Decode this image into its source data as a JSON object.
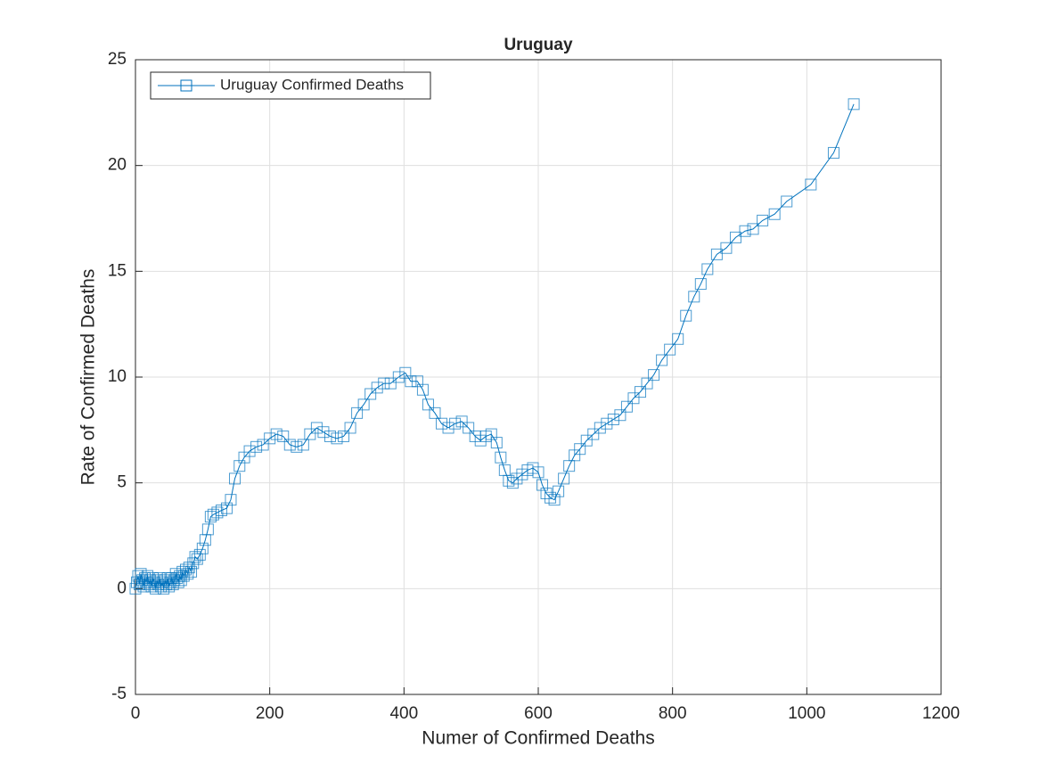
{
  "chart_data": {
    "type": "line",
    "title": "Uruguay",
    "x_label": "Numer of Confirmed Deaths",
    "y_label": "Rate of Confirmed Deaths",
    "xlim": [
      0,
      1200
    ],
    "ylim": [
      -5,
      25
    ],
    "xticks": [
      0,
      200,
      400,
      600,
      800,
      1000,
      1200
    ],
    "yticks": [
      -5,
      0,
      5,
      10,
      15,
      20,
      25
    ],
    "grid": true,
    "legend_position": "upper-left",
    "series": [
      {
        "name": "Uruguay Confirmed Deaths",
        "color": "#0072bd",
        "marker": "square",
        "x": [
          0,
          2,
          4,
          6,
          8,
          10,
          12,
          14,
          16,
          18,
          20,
          22,
          24,
          26,
          28,
          30,
          32,
          34,
          36,
          38,
          40,
          42,
          44,
          46,
          48,
          50,
          52,
          54,
          56,
          58,
          60,
          62,
          64,
          66,
          68,
          70,
          72,
          75,
          78,
          80,
          83,
          86,
          89,
          92,
          96,
          100,
          104,
          108,
          112,
          116,
          122,
          128,
          136,
          142,
          148,
          155,
          162,
          170,
          180,
          190,
          200,
          210,
          220,
          230,
          240,
          250,
          260,
          270,
          280,
          290,
          300,
          310,
          320,
          330,
          340,
          350,
          360,
          370,
          380,
          392,
          402,
          410,
          420,
          428,
          436,
          446,
          456,
          466,
          476,
          486,
          496,
          506,
          514,
          522,
          530,
          538,
          544,
          550,
          556,
          562,
          568,
          576,
          584,
          592,
          600,
          606,
          612,
          618,
          624,
          630,
          638,
          646,
          654,
          662,
          672,
          682,
          692,
          702,
          712,
          722,
          732,
          742,
          752,
          762,
          772,
          784,
          796,
          808,
          820,
          832,
          842,
          852,
          866,
          880,
          894,
          908,
          920,
          934,
          952,
          970,
          1006,
          1040,
          1070
        ],
        "values": [
          0,
          0.3,
          0.6,
          0.2,
          0.7,
          0.4,
          0.1,
          0.5,
          0.3,
          0.6,
          0.2,
          0.4,
          0.1,
          0.5,
          0.3,
          0,
          0.4,
          0.2,
          0.5,
          0.1,
          0.3,
          0,
          0.4,
          0.2,
          0.5,
          0.1,
          0.3,
          0.5,
          0.2,
          0.4,
          0.7,
          0.5,
          0.3,
          0.6,
          0.4,
          0.8,
          0.6,
          0.9,
          0.7,
          1.0,
          0.8,
          1.2,
          1.5,
          1.4,
          1.6,
          1.9,
          2.3,
          2.8,
          3.4,
          3.5,
          3.6,
          3.7,
          3.8,
          4.2,
          5.2,
          5.8,
          6.2,
          6.5,
          6.7,
          6.8,
          7.1,
          7.3,
          7.2,
          6.8,
          6.7,
          6.8,
          7.3,
          7.6,
          7.4,
          7.2,
          7.1,
          7.2,
          7.6,
          8.3,
          8.7,
          9.2,
          9.5,
          9.7,
          9.7,
          10.0,
          10.2,
          9.8,
          9.8,
          9.4,
          8.7,
          8.3,
          7.8,
          7.6,
          7.8,
          7.9,
          7.6,
          7.2,
          7.0,
          7.2,
          7.3,
          6.9,
          6.2,
          5.6,
          5.1,
          5.0,
          5.2,
          5.4,
          5.6,
          5.7,
          5.5,
          4.9,
          4.5,
          4.3,
          4.2,
          4.6,
          5.2,
          5.8,
          6.3,
          6.6,
          7.0,
          7.3,
          7.6,
          7.8,
          8.0,
          8.2,
          8.6,
          9.0,
          9.3,
          9.7,
          10.1,
          10.8,
          11.3,
          11.8,
          12.9,
          13.8,
          14.4,
          15.1,
          15.8,
          16.1,
          16.6,
          16.9,
          17.0,
          17.4,
          17.7,
          18.3,
          19.1,
          20.6,
          22.9
        ]
      }
    ]
  }
}
